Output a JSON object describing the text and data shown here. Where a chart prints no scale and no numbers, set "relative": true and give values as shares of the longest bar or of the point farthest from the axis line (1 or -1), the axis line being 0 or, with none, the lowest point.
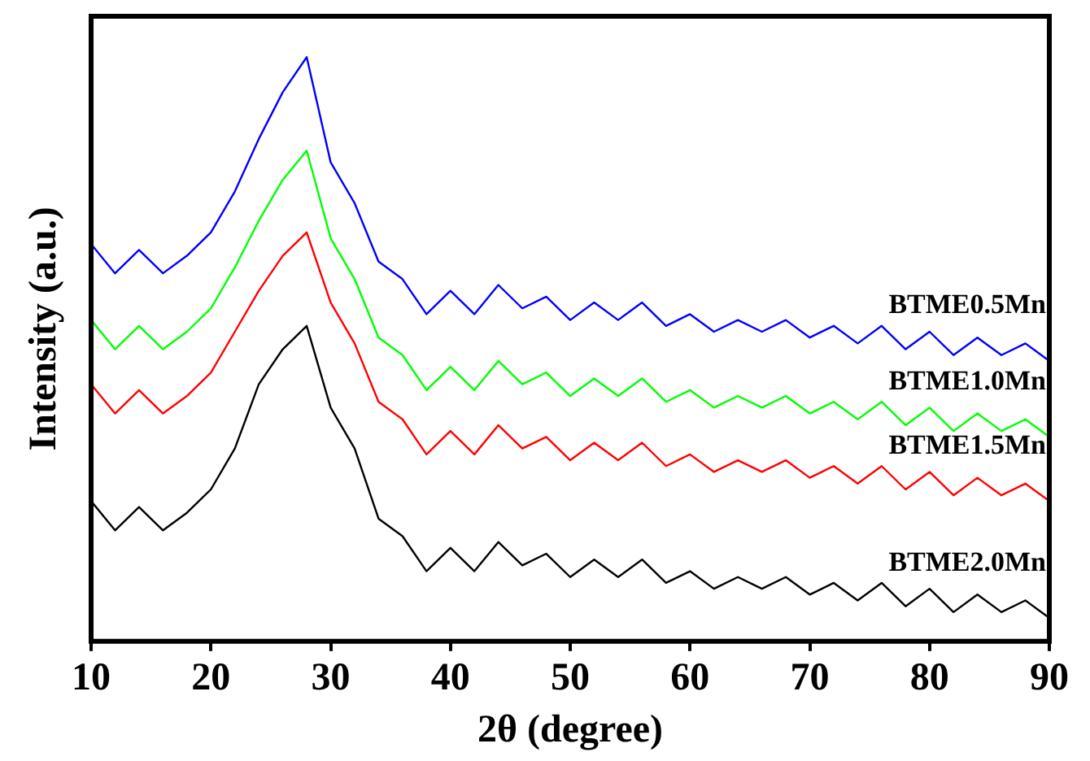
{
  "chart_data": {
    "type": "line",
    "relative": true,
    "xlabel": "2θ (degree)",
    "ylabel": "Intensity (a.u.)",
    "x": [
      10,
      12,
      14,
      16,
      18,
      20,
      22,
      24,
      26,
      28,
      30,
      32,
      34,
      36,
      38,
      40,
      42,
      44,
      46,
      48,
      50,
      52,
      54,
      56,
      58,
      60,
      62,
      64,
      66,
      68,
      70,
      72,
      74,
      76,
      78,
      80,
      82,
      84,
      86,
      88,
      90
    ],
    "xlim": [
      10,
      90
    ],
    "xticks": [
      10,
      20,
      30,
      40,
      50,
      60,
      70,
      80,
      90
    ],
    "grid": false,
    "legend": false,
    "marker": "none",
    "line_style": "solid",
    "series": [
      {
        "name": "BTME0.5Mn",
        "color": "#0000ff",
        "values": [
          0.68,
          0.63,
          0.67,
          0.63,
          0.66,
          0.7,
          0.77,
          0.86,
          0.94,
          1.0,
          0.82,
          0.75,
          0.65,
          0.62,
          0.56,
          0.6,
          0.56,
          0.61,
          0.57,
          0.59,
          0.55,
          0.58,
          0.55,
          0.58,
          0.54,
          0.56,
          0.53,
          0.55,
          0.53,
          0.55,
          0.52,
          0.54,
          0.51,
          0.54,
          0.5,
          0.53,
          0.49,
          0.52,
          0.49,
          0.51,
          0.48
        ]
      },
      {
        "name": "BTME1.0Mn",
        "color": "#00ff00",
        "values": [
          0.55,
          0.5,
          0.54,
          0.5,
          0.53,
          0.57,
          0.64,
          0.72,
          0.79,
          0.84,
          0.69,
          0.62,
          0.52,
          0.49,
          0.43,
          0.47,
          0.43,
          0.48,
          0.44,
          0.46,
          0.42,
          0.45,
          0.42,
          0.45,
          0.41,
          0.43,
          0.4,
          0.42,
          0.4,
          0.42,
          0.39,
          0.41,
          0.38,
          0.41,
          0.37,
          0.4,
          0.36,
          0.39,
          0.36,
          0.38,
          0.35
        ]
      },
      {
        "name": "BTME1.5Mn",
        "color": "#ff0000",
        "values": [
          0.44,
          0.39,
          0.43,
          0.39,
          0.42,
          0.46,
          0.53,
          0.6,
          0.66,
          0.7,
          0.58,
          0.51,
          0.41,
          0.38,
          0.32,
          0.36,
          0.32,
          0.37,
          0.33,
          0.35,
          0.31,
          0.34,
          0.31,
          0.34,
          0.3,
          0.32,
          0.29,
          0.31,
          0.29,
          0.31,
          0.28,
          0.3,
          0.27,
          0.3,
          0.26,
          0.29,
          0.25,
          0.28,
          0.25,
          0.27,
          0.24
        ]
      },
      {
        "name": "BTME2.0Mn",
        "color": "#000000",
        "values": [
          0.24,
          0.19,
          0.23,
          0.19,
          0.22,
          0.26,
          0.33,
          0.44,
          0.5,
          0.54,
          0.4,
          0.33,
          0.21,
          0.18,
          0.12,
          0.16,
          0.12,
          0.17,
          0.13,
          0.15,
          0.11,
          0.14,
          0.11,
          0.14,
          0.1,
          0.12,
          0.09,
          0.11,
          0.09,
          0.11,
          0.08,
          0.1,
          0.07,
          0.1,
          0.06,
          0.09,
          0.05,
          0.08,
          0.05,
          0.07,
          0.04
        ]
      }
    ]
  }
}
